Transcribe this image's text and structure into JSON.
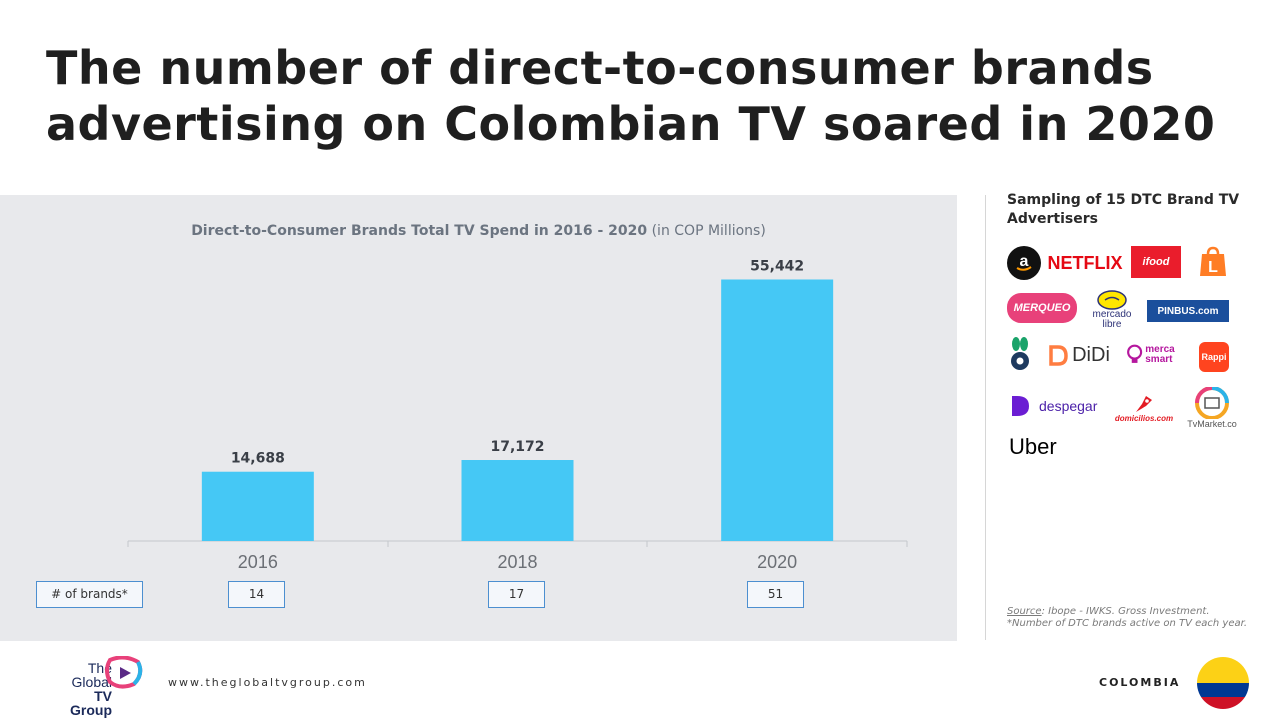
{
  "headline": "The number of direct-to-consumer brands advertising on Colombian TV soared in 2020",
  "chart_data": {
    "type": "bar",
    "title_bold": "Direct-to-Consumer Brands Total TV Spend in 2016 - 2020",
    "title_unit": "(in COP Millions)",
    "categories": [
      "2016",
      "2018",
      "2020"
    ],
    "values": [
      14688,
      17172,
      55442
    ],
    "value_labels": [
      "14,688",
      "17,172",
      "55,442"
    ],
    "ylim": [
      0,
      60000
    ],
    "bar_color": "#45c8f5",
    "grid": false,
    "legend": "none"
  },
  "brands_row": {
    "label": "# of brands*",
    "values": [
      "14",
      "17",
      "51"
    ]
  },
  "sidebar": {
    "title": "Sampling of 15 DTC Brand TV Advertisers",
    "logos": {
      "netflix": "NETFLIX",
      "ifood": "ifood",
      "merqueo": "MERQUEO",
      "mercadolibre": "mercado libre",
      "pinbus": "PINBUS.com",
      "didi": "DiDi",
      "mercasmart": "merca smart",
      "rappi": "Rappi",
      "despegar": "despegar",
      "domicilios": "domicilios.com",
      "tvmarket": "TvMarket.co",
      "uber": "Uber"
    },
    "source_label": "Source",
    "source_text": ": Ibope - IWKS. Gross Investment.",
    "footnote": "*Number of DTC brands active on TV each year."
  },
  "footer": {
    "logo_line1": "The",
    "logo_line2": "Global",
    "logo_line3": "TV Group",
    "url": "www.theglobaltvgroup.com",
    "country": "COLOMBIA"
  },
  "colors": {
    "netflix": "#e50914",
    "ifood": "#ea1d2c",
    "merqueo": "#e8417a",
    "mercadolibre": "#ffe600",
    "pinbus": "#1b4f9c",
    "didi": "#ff7d41",
    "mercasmart": "#b5179e",
    "rappi": "#ff441f",
    "despegar": "#6b1dd3",
    "domicilios": "#e31b23",
    "flag_yellow": "#fcd116",
    "flag_blue": "#003893",
    "flag_red": "#ce1126"
  }
}
